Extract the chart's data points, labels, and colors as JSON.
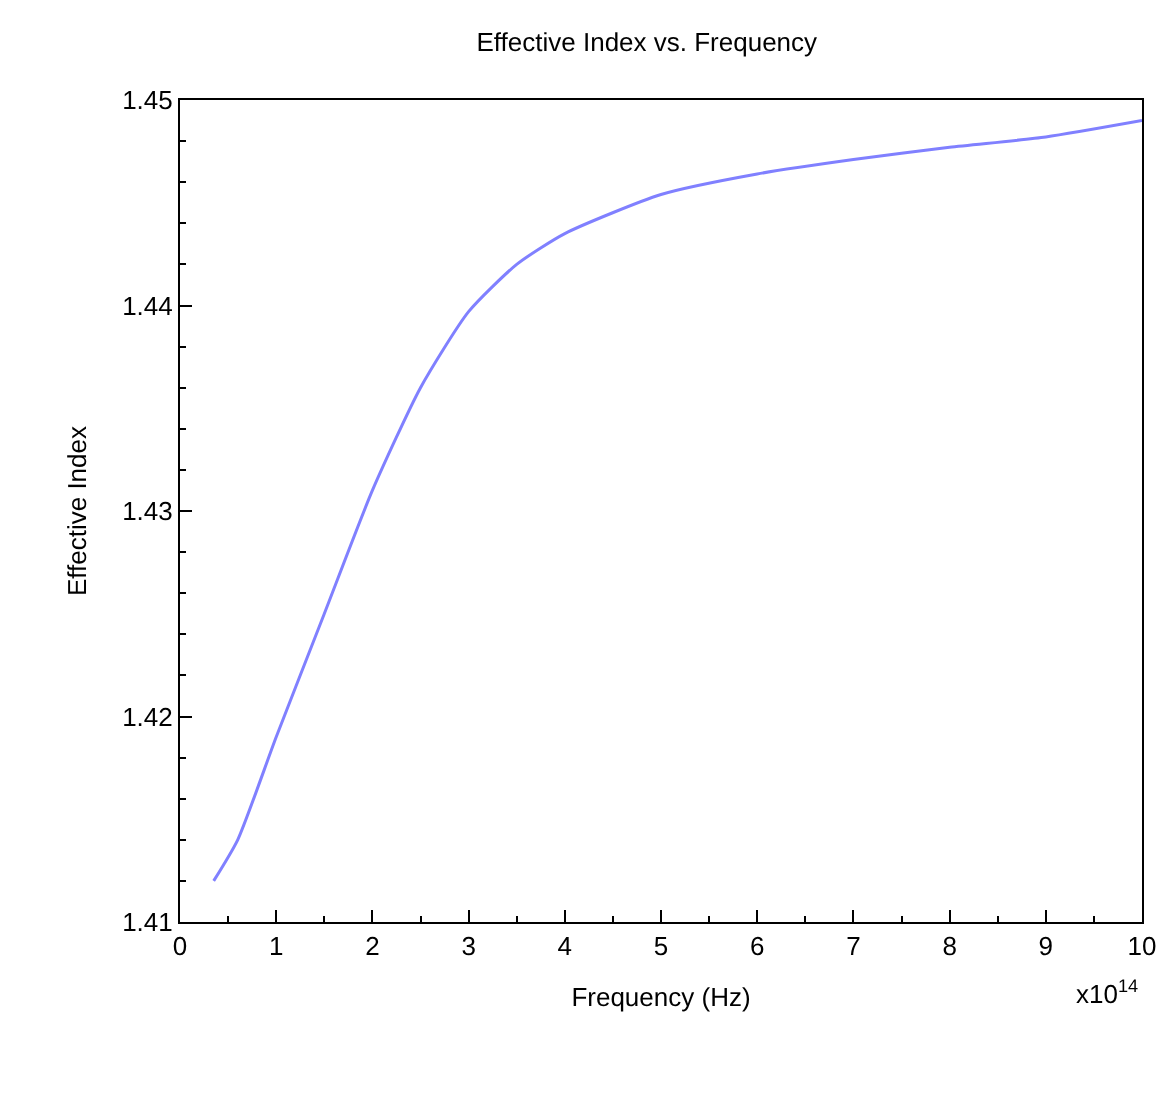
{
  "chart_data": {
    "type": "line",
    "title": "Effective Index vs. Frequency",
    "xlabel": "Frequency (Hz)",
    "ylabel": "Effective Index",
    "annotations": [
      "x10$^{14}$"
    ],
    "x": [
      0.35,
      0.6,
      1.0,
      1.5,
      2.0,
      2.5,
      3.0,
      3.5,
      4.0,
      5.0,
      6.0,
      7.0,
      8.0,
      9.0,
      10.0
    ],
    "series": [
      {
        "color": "#8080ff",
        "values": [
          1.412,
          1.414,
          1.419,
          1.425,
          1.431,
          1.436,
          1.4397,
          1.442,
          1.4435,
          1.4454,
          1.4464,
          1.4471,
          1.4477,
          1.4482,
          1.449
        ]
      }
    ],
    "xlim": [
      0,
      10
    ],
    "xticks": [
      0,
      1,
      2,
      3,
      4,
      5,
      6,
      7,
      8,
      9,
      10
    ],
    "ylim": [
      1.41,
      1.45
    ],
    "yticks": [
      1.41,
      1.42,
      1.43,
      1.44,
      1.45
    ],
    "grid": false,
    "marker": "none",
    "line_style": "solid"
  }
}
